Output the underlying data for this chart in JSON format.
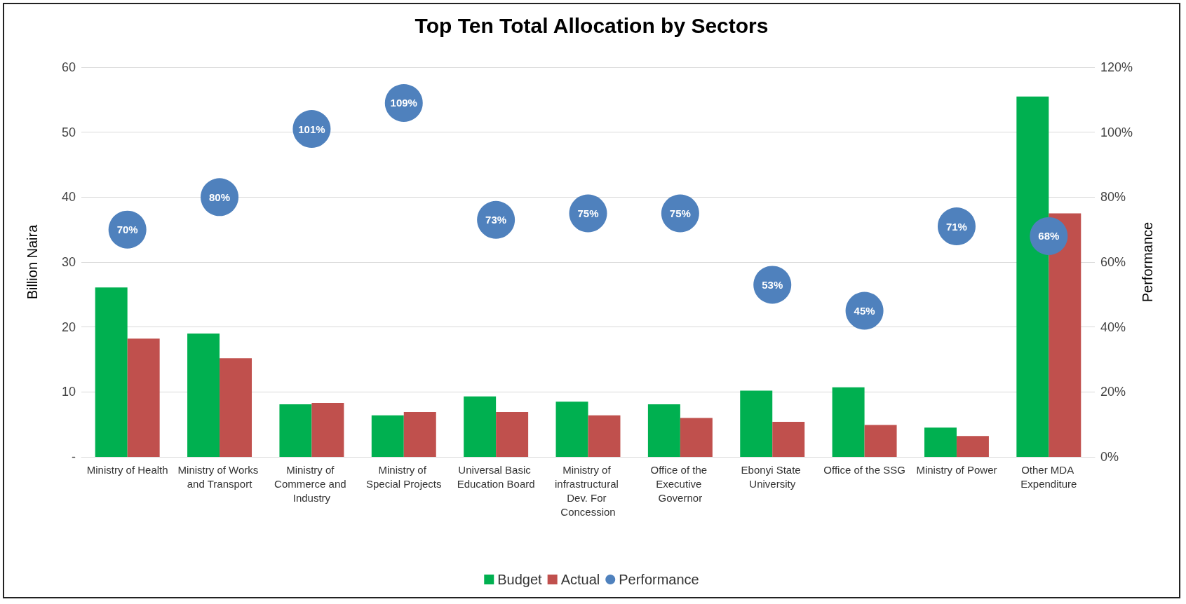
{
  "chart_data": {
    "type": "bar",
    "title": "Top Ten Total Allocation by Sectors",
    "ylabel": "Billion Naira",
    "y2label": "Performance",
    "categories": [
      "Ministry of Health",
      "Ministry of Works and Transport",
      "Ministry of Commerce and Industry",
      "Ministry of Special Projects",
      "Universal Basic Education Board",
      "Ministry of infrastructural Dev. For Concession",
      "Office of the Executive Governor",
      "Ebonyi State University",
      "Office of the SSG",
      "Ministry of Power",
      "Other MDA Expenditure"
    ],
    "series": [
      {
        "name": "Budget",
        "color": "#00b050",
        "values": [
          26.1,
          19,
          8.1,
          6.4,
          9.3,
          8.5,
          8.1,
          10.2,
          10.7,
          4.5,
          55.5
        ]
      },
      {
        "name": "Actual",
        "color": "#c0504d",
        "values": [
          18.2,
          15.2,
          8.3,
          6.9,
          6.9,
          6.4,
          6.0,
          5.4,
          4.9,
          3.2,
          37.5
        ]
      },
      {
        "name": "Performance",
        "type": "scatter",
        "axis": "y2",
        "color": "#4f81bd",
        "values": [
          70,
          80,
          101,
          109,
          73,
          75,
          75,
          53,
          45,
          71,
          68
        ],
        "value_labels": [
          "70%",
          "80%",
          "101%",
          "109%",
          "73%",
          "75%",
          "75%",
          "53%",
          "45%",
          "71%",
          "68%"
        ]
      }
    ],
    "ylim": [
      0,
      60
    ],
    "yticks": [
      {
        "value": 0,
        "label": "-"
      },
      10,
      20,
      30,
      40,
      50,
      60
    ],
    "y2lim": [
      0,
      120
    ],
    "y2ticks": [
      {
        "value": 0,
        "label": "0%"
      },
      {
        "value": 20,
        "label": "20%"
      },
      {
        "value": 40,
        "label": "40%"
      },
      {
        "value": 60,
        "label": "60%"
      },
      {
        "value": 80,
        "label": "80%"
      },
      {
        "value": 100,
        "label": "100%"
      },
      {
        "value": 120,
        "label": "120%"
      }
    ],
    "grid": "y",
    "legend": "bottom",
    "marker": "circle"
  }
}
